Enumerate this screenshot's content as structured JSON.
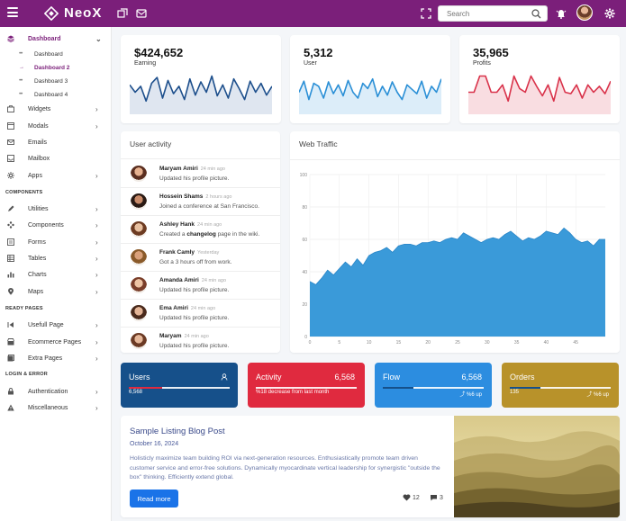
{
  "app": {
    "name": "NeoX"
  },
  "search": {
    "placeholder": "Search"
  },
  "sidebar": {
    "dashboard": "Dashboard",
    "sub_items": [
      "Dashboard",
      "Dashboard 2",
      "Dashboard 3",
      "Dashboard 4"
    ],
    "items": [
      "Widgets",
      "Modals",
      "Emails",
      "Mailbox",
      "Apps"
    ],
    "components_header": "COMPONENTS",
    "components": [
      "Utilities",
      "Components",
      "Forms",
      "Tables",
      "Charts",
      "Maps"
    ],
    "ready_header": "READY PAGES",
    "ready": [
      "Usefull Page",
      "Ecommerce Pages",
      "Extra Pages"
    ],
    "login_header": "LOGIN & ERROR",
    "login": [
      "Authentication",
      "Miscellaneous"
    ]
  },
  "stats": [
    {
      "value": "$424,652",
      "label": "Earning",
      "color": "#1d4f8c",
      "fill": "#dfe6f0",
      "series": [
        40,
        30,
        38,
        18,
        42,
        50,
        22,
        46,
        28,
        38,
        20,
        48,
        26,
        44,
        30,
        52,
        25,
        40,
        22,
        48,
        35,
        20,
        45,
        30,
        42,
        26,
        38
      ]
    },
    {
      "value": "5,312",
      "label": "User",
      "color": "#2a8fd6",
      "fill": "#dcedf9",
      "series": [
        30,
        45,
        20,
        42,
        38,
        22,
        44,
        28,
        40,
        25,
        46,
        30,
        22,
        42,
        35,
        48,
        24,
        38,
        26,
        44,
        30,
        20,
        40,
        34,
        28,
        45,
        22,
        38,
        30,
        48
      ]
    },
    {
      "value": "35,965",
      "label": "Profits",
      "color": "#d9324a",
      "fill": "#f9dde1",
      "series": [
        30,
        30,
        52,
        52,
        30,
        30,
        40,
        18,
        52,
        35,
        30,
        52,
        38,
        25,
        40,
        18,
        50,
        30,
        28,
        40,
        22,
        40,
        30,
        38,
        28,
        45
      ]
    }
  ],
  "activity": {
    "title": "User activity",
    "items": [
      {
        "name": "Maryam Amiri",
        "time": "24 min ago",
        "desc": "Updated his profile picture.",
        "bold": "",
        "desc2": ""
      },
      {
        "name": "Hossein Shams",
        "time": "2 hours ago",
        "desc": "Joined a conference at San Francisco.",
        "bold": "",
        "desc2": ""
      },
      {
        "name": "Ashley Hank",
        "time": "24 min ago",
        "desc": "Created a ",
        "bold": "changelog",
        "desc2": " page in the wiki."
      },
      {
        "name": "Frank Camly",
        "time": "Yesterday",
        "desc": "Got a 3 hours off from work.",
        "bold": "",
        "desc2": ""
      },
      {
        "name": "Amanda Amiri",
        "time": "24 min ago",
        "desc": "Updated his profile picture.",
        "bold": "",
        "desc2": ""
      },
      {
        "name": "Ema Amiri",
        "time": "24 min ago",
        "desc": "Updated his profile picture.",
        "bold": "",
        "desc2": ""
      },
      {
        "name": "Maryam",
        "time": "24 min ago",
        "desc": "Updated his profile picture.",
        "bold": "",
        "desc2": ""
      }
    ]
  },
  "traffic": {
    "title": "Web Traffic"
  },
  "chart_data": {
    "type": "area",
    "title": "Web Traffic",
    "xlabel": "",
    "ylabel": "",
    "ylim": [
      0,
      100
    ],
    "xlim": [
      0,
      50
    ],
    "y_ticks": [
      0,
      20,
      40,
      60,
      80,
      100
    ],
    "x_ticks": [
      0,
      5,
      10,
      15,
      20,
      25,
      30,
      35,
      40,
      45
    ],
    "grid": true,
    "color": "#3a9ad9",
    "x": [
      0,
      1,
      2,
      3,
      4,
      5,
      6,
      7,
      8,
      9,
      10,
      11,
      12,
      13,
      14,
      15,
      16,
      17,
      18,
      19,
      20,
      21,
      22,
      23,
      24,
      25,
      26,
      27,
      28,
      29,
      30,
      31,
      32,
      33,
      34,
      35,
      36,
      37,
      38,
      39,
      40,
      41,
      42,
      43,
      44,
      45,
      46,
      47,
      48,
      49,
      50
    ],
    "y": [
      34,
      32,
      36,
      41,
      38,
      42,
      46,
      43,
      48,
      44,
      50,
      52,
      53,
      55,
      52,
      56,
      57,
      57,
      56,
      58,
      58,
      59,
      58,
      60,
      61,
      60,
      64,
      62,
      60,
      58,
      60,
      61,
      60,
      63,
      65,
      62,
      59,
      61,
      60,
      62,
      65,
      64,
      63,
      67,
      64,
      60,
      58,
      59,
      56,
      60,
      60
    ]
  },
  "widgets": [
    {
      "title": "Users",
      "value": "",
      "sub": "6,568",
      "right": "",
      "bg": "#16508a",
      "bar": "#e02a3f",
      "pct": 0.33,
      "icon": "user-icon"
    },
    {
      "title": "Activity",
      "value": "6,568",
      "sub": "%18 decrease from last month",
      "right": "",
      "bg": "#e02a3f",
      "bar": "#ffffff",
      "pct": 0.0,
      "icon": ""
    },
    {
      "title": "Flow",
      "value": "6,568",
      "sub": "",
      "right": "%6 up",
      "bg": "#2c8de0",
      "bar": "#16508a",
      "pct": 0.3,
      "icon": ""
    },
    {
      "title": "Orders",
      "value": "",
      "sub": "135",
      "right": "%6 up",
      "bg": "#b8922a",
      "bar": "#16508a",
      "pct": 0.3,
      "icon": ""
    }
  ],
  "blog": {
    "title": "Sample Listing Blog Post",
    "date": "October 16, 2024",
    "text": "Holisticly maximize team building ROI via next-generation resources. Enthusiastically promote team driven customer service and error-free solutions. Dynamically myocardinate vertical leadership for synergistic \"outside the box\" thinking. Efficiently extend global.",
    "button": "Read more",
    "likes": "12",
    "comments": "3"
  }
}
